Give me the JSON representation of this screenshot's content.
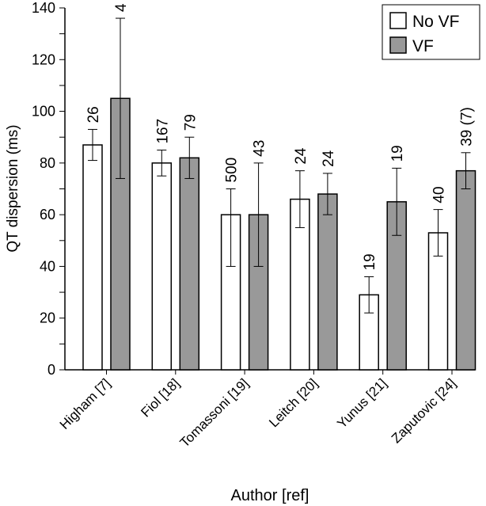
{
  "chart_data": {
    "type": "bar",
    "title": "",
    "xlabel": "Author [ref]",
    "ylabel": "QT dispersion (ms)",
    "ylim": [
      0,
      140
    ],
    "yticks": [
      0,
      20,
      40,
      60,
      80,
      100,
      120,
      140
    ],
    "grid": false,
    "legend_placement": "top-right",
    "categories": [
      "Higham [7]",
      "Fiol [18]",
      "Tomassoni [19]",
      "Leitch [20]",
      "Yunus [21]",
      "Zaputovic [24]"
    ],
    "series": [
      {
        "name": "No VF",
        "color": "#ffffff",
        "values": [
          87,
          80,
          60,
          66,
          29,
          53
        ],
        "err_low": [
          81,
          75,
          40,
          55,
          22,
          44
        ],
        "err_high": [
          93,
          85,
          70,
          77,
          36,
          62
        ],
        "labels": [
          "26",
          "167",
          "500",
          "24",
          "19",
          "40"
        ]
      },
      {
        "name": "VF",
        "color": "#999999",
        "values": [
          105,
          82,
          60,
          68,
          65,
          77
        ],
        "err_low": [
          74,
          74,
          40,
          60,
          52,
          70
        ],
        "err_high": [
          136,
          90,
          80,
          76,
          78,
          84
        ],
        "labels": [
          "4",
          "79",
          "43",
          "24",
          "19",
          "39 (7)"
        ]
      }
    ]
  }
}
